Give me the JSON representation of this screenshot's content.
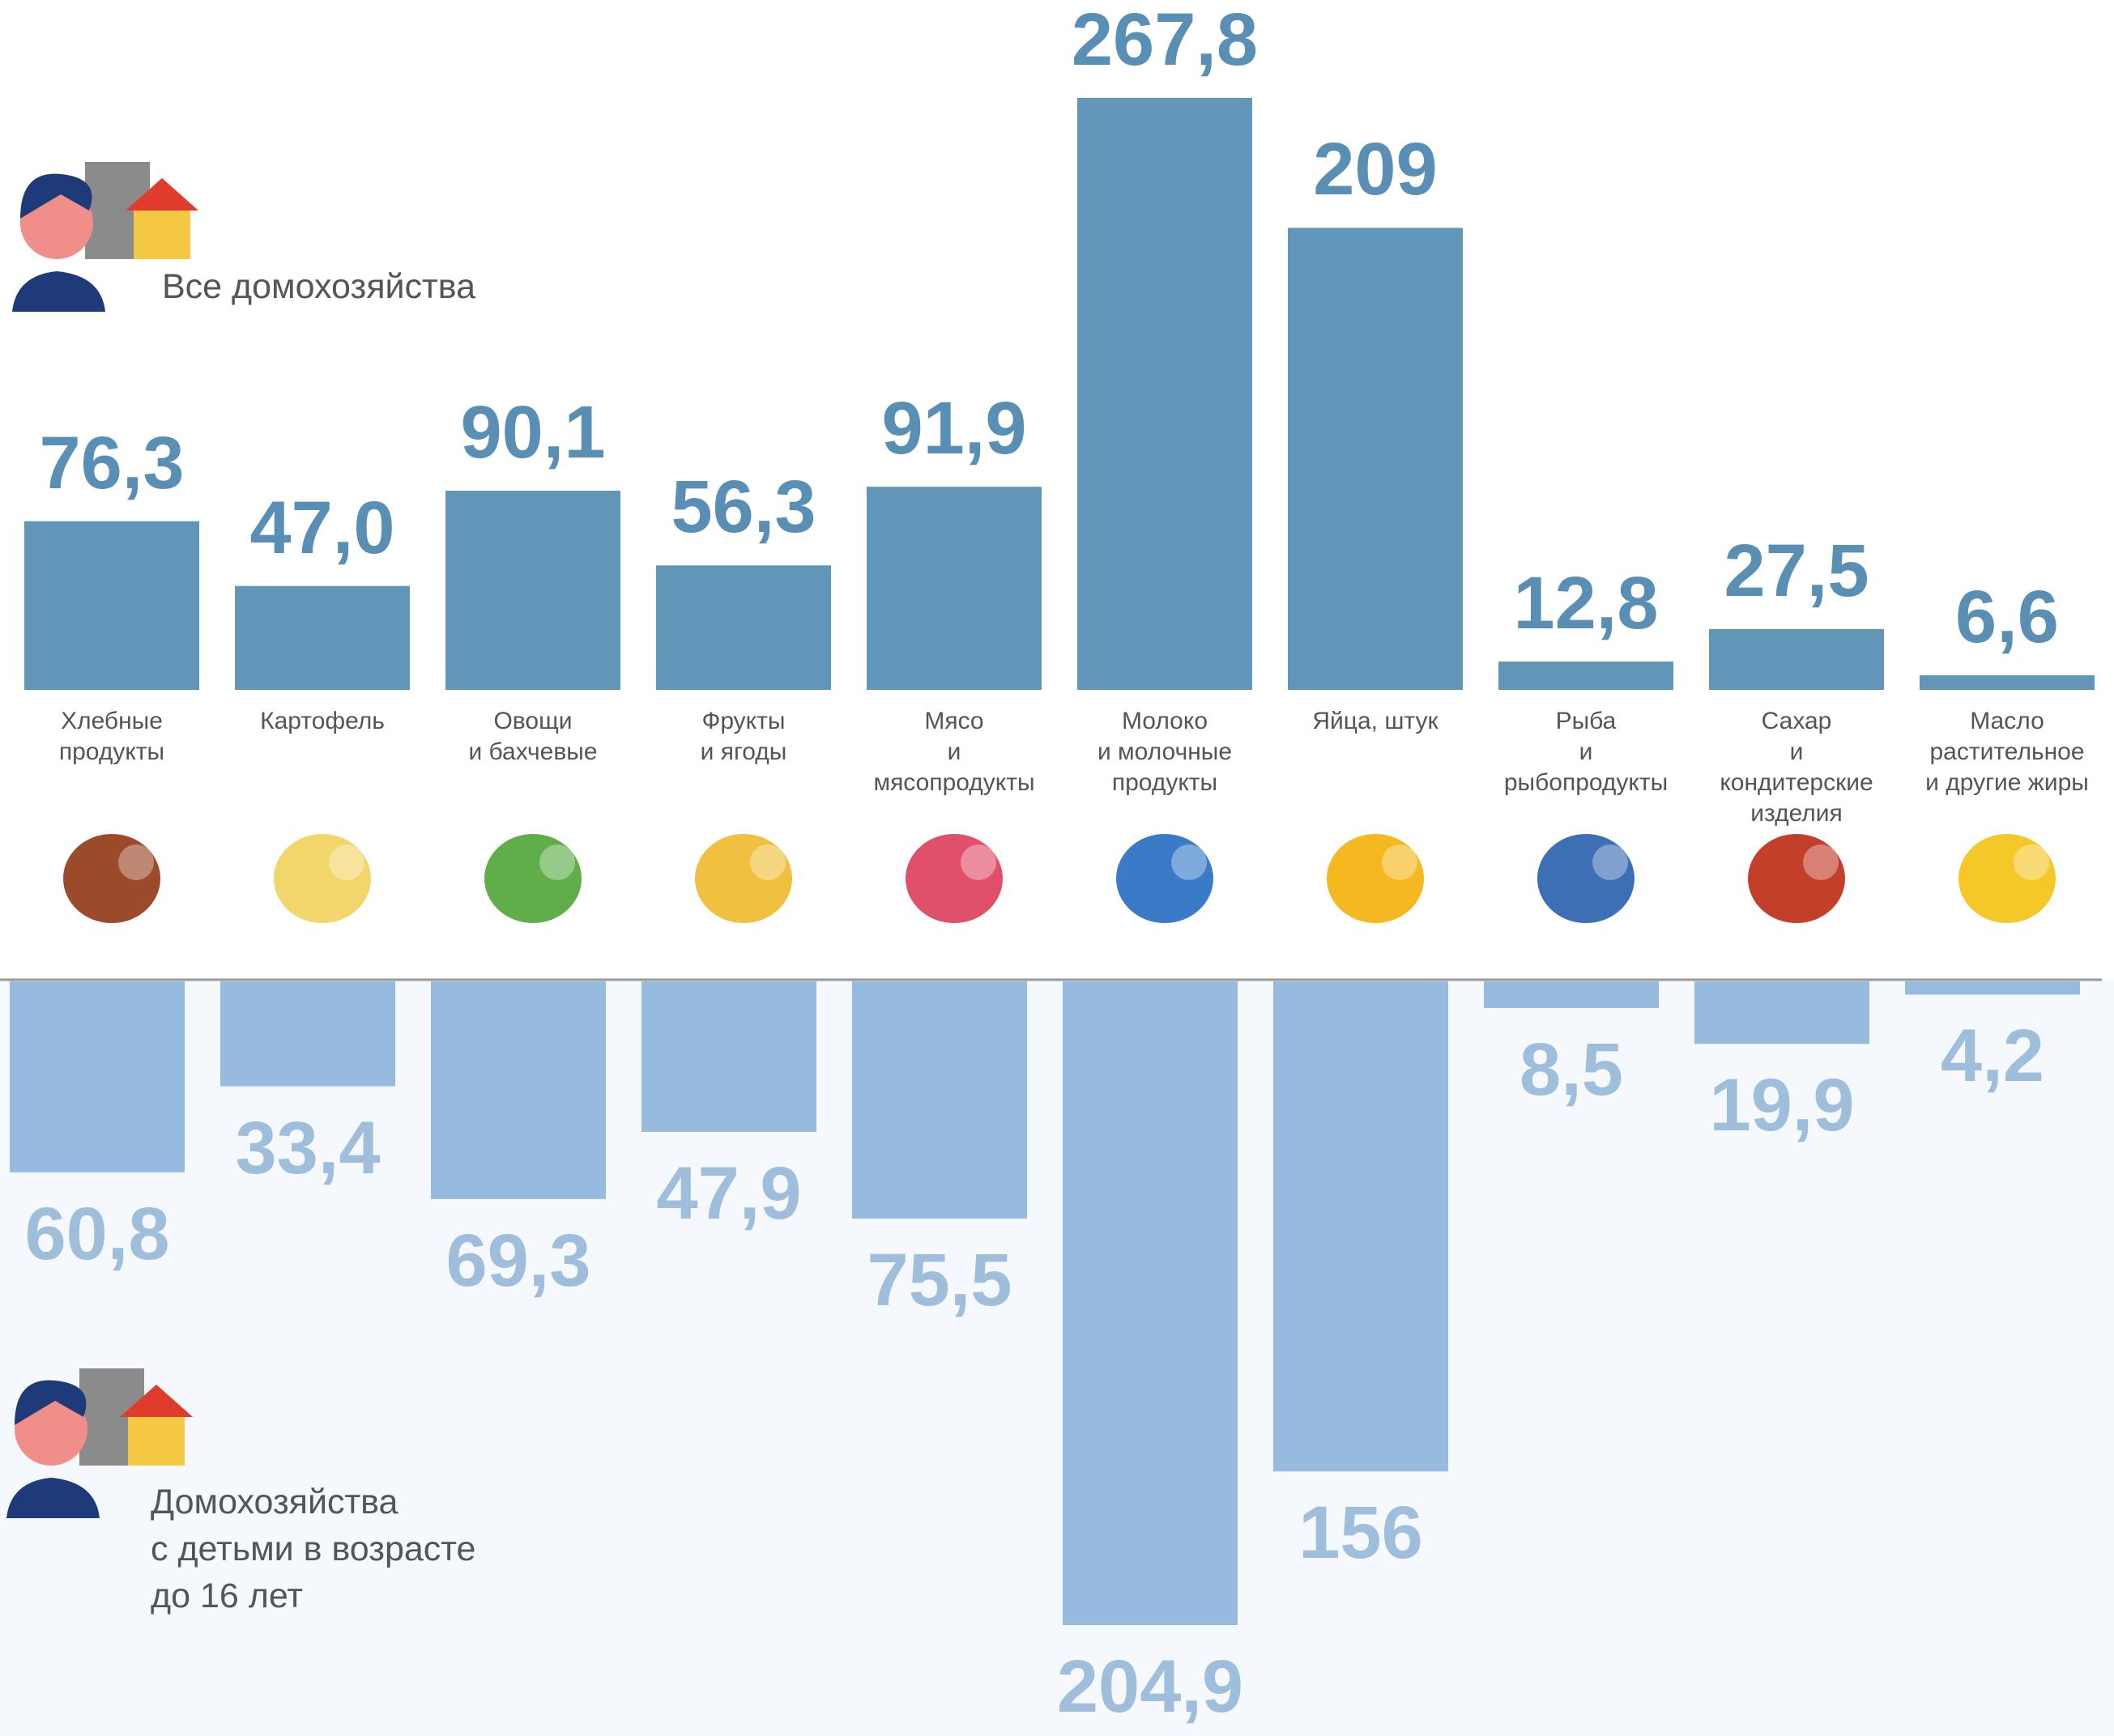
{
  "chart_data": {
    "type": "bar",
    "categories": [
      "Хлебные\nпродукты",
      "Картофель",
      "Овощи\nи бахчевые",
      "Фрукты\nи ягоды",
      "Мясо\nи\nмясопродукты",
      "Молоко\nи молочные\nпродукты",
      "Яйца, штук",
      "Рыба\nи\nрыбопродукты",
      "Сахар\nи\nкондитерские\nизделия",
      "Масло\nрастительное\nи другие жиры"
    ],
    "series": [
      {
        "name": "Все домохозяйства",
        "color": "#6196b9",
        "values": [
          76.3,
          47.0,
          90.1,
          56.3,
          91.9,
          267.8,
          209,
          12.8,
          27.5,
          6.6
        ],
        "value_labels": [
          "76,3",
          "47,0",
          "90,1",
          "56,3",
          "91,9",
          "267,8",
          "209",
          "12,8",
          "27,5",
          "6,6"
        ]
      },
      {
        "name": "Домохозяйства\nс детьми в возрасте\nдо 16 лет",
        "color": "#96bbdf",
        "values": [
          60.8,
          33.4,
          69.3,
          47.9,
          75.5,
          204.9,
          156,
          8.5,
          19.9,
          4.2
        ],
        "value_labels": [
          "60,8",
          "33,4",
          "69,3",
          "47,9",
          "75,5",
          "204,9",
          "156",
          "8,5",
          "19,9",
          "4,2"
        ]
      }
    ]
  }
}
